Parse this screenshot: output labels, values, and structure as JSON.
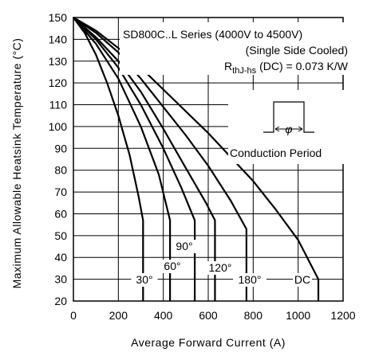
{
  "chart_data": {
    "type": "line",
    "xlabel": "Average Forward Current (A)",
    "ylabel": "Maximum Allowable Heatsink Temperature (°C)",
    "xlim": [
      0,
      1200
    ],
    "ylim": [
      20,
      150
    ],
    "xticks": [
      0,
      200,
      400,
      600,
      800,
      1000,
      1200
    ],
    "yticks": [
      20,
      30,
      40,
      50,
      60,
      70,
      80,
      90,
      100,
      110,
      120,
      130,
      140,
      150
    ],
    "grid": true,
    "annotations": {
      "line1": "SD800C..L Series (4000V to 4500V)",
      "line2": "(Single Side Cooled)",
      "rth_prefix": "R",
      "rth_sub": "thJ-hs",
      "rth_suffix": "(DC) = 0.073 K/W",
      "conduction_label": "Conduction Period"
    },
    "series": [
      {
        "name": "30°",
        "x": [
          0,
          50,
          100,
          150,
          200,
          250,
          290,
          310,
          310
        ],
        "y": [
          150,
          143,
          133,
          120,
          105,
          87,
          68,
          57,
          20
        ]
      },
      {
        "name": "60°",
        "x": [
          0,
          100,
          200,
          300,
          380,
          430,
          430
        ],
        "y": [
          150,
          138,
          122,
          100,
          78,
          57,
          20
        ]
      },
      {
        "name": "90°",
        "x": [
          0,
          100,
          200,
          300,
          400,
          480,
          540,
          540
        ],
        "y": [
          150,
          140,
          127,
          110,
          90,
          72,
          57,
          20
        ]
      },
      {
        "name": "120°",
        "x": [
          0,
          100,
          200,
          300,
          400,
          500,
          590,
          630,
          630
        ],
        "y": [
          150,
          141,
          130,
          116,
          99,
          81,
          65,
          57,
          20
        ]
      },
      {
        "name": "180°",
        "x": [
          0,
          100,
          200,
          300,
          400,
          500,
          600,
          700,
          770,
          770
        ],
        "y": [
          150,
          143,
          134,
          122,
          109,
          96,
          82,
          66,
          53,
          20
        ]
      },
      {
        "name": "DC",
        "x": [
          0,
          100,
          200,
          300,
          400,
          500,
          600,
          700,
          800,
          900,
          1000,
          1050,
          1090,
          1090
        ],
        "y": [
          150,
          144,
          136,
          127,
          117,
          107,
          97,
          86,
          75,
          62,
          48,
          38,
          30,
          20
        ]
      }
    ]
  },
  "colors": {
    "line": "#000000",
    "grid": "#000000",
    "background": "#ffffff"
  }
}
